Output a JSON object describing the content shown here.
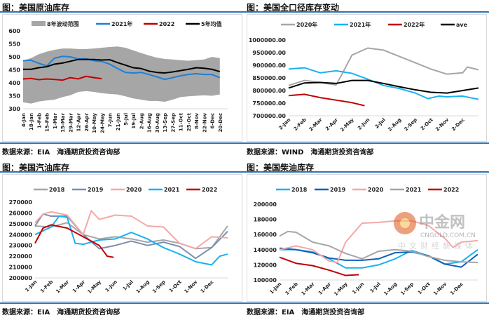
{
  "chart_data": [
    {
      "type": "line",
      "title": "图：美国原油库存",
      "source": "数据来源：EIA　海通期货投资咨询部",
      "ylim": [
        300,
        600
      ],
      "yticks": [
        300,
        350,
        400,
        450,
        500,
        550,
        600
      ],
      "ytick_labels": [
        "300",
        "350",
        "400",
        "450",
        "500",
        "550",
        "600"
      ],
      "xlabels": [
        "4-Jan",
        "18-Jan",
        "1-Feb",
        "15-Feb",
        "1-Mar",
        "15-Mar",
        "29-Mar",
        "12-Apr",
        "26-Apr",
        "10-May",
        "24-May",
        "7-Jun",
        "21-Jun",
        "5-Jul",
        "19-Jul",
        "2-Aug",
        "16-Aug",
        "30-Aug",
        "13-Sep",
        "27-Sep",
        "11-Oct",
        "25-Oct",
        "8-Nov",
        "22-Nov",
        "6-Dec",
        "20-Dec"
      ],
      "xrange": [
        0,
        26
      ],
      "xlabel_rotate": -90,
      "band": {
        "name": "8年波动范围",
        "color": "#a6a6a6",
        "x": [
          0,
          1,
          2,
          3,
          4,
          5,
          6,
          7,
          8,
          9,
          10,
          11,
          12,
          13,
          14,
          15,
          16,
          17,
          18,
          19,
          20,
          21,
          22,
          23,
          24,
          25
        ],
        "upper": [
          485,
          495,
          510,
          520,
          527,
          532,
          532,
          530,
          530,
          532,
          535,
          538,
          540,
          535,
          525,
          515,
          505,
          497,
          492,
          490,
          487,
          485,
          487,
          490,
          500,
          495
        ],
        "lower": [
          325,
          320,
          328,
          332,
          335,
          345,
          352,
          365,
          368,
          365,
          360,
          357,
          355,
          348,
          340,
          335,
          330,
          330,
          327,
          335,
          345,
          348,
          350,
          352,
          350,
          355
        ]
      },
      "series": [
        {
          "name": "2021年",
          "color": "#1f7fd6",
          "x": [
            0,
            1,
            2,
            3,
            4,
            5,
            6,
            7,
            8,
            9,
            10,
            11,
            12,
            13,
            14,
            15,
            16,
            17,
            18,
            19,
            20,
            21,
            22,
            23,
            24,
            25
          ],
          "values": [
            485,
            487,
            475,
            465,
            495,
            502,
            500,
            492,
            493,
            485,
            482,
            472,
            455,
            440,
            438,
            440,
            432,
            423,
            413,
            420,
            427,
            432,
            435,
            432,
            432,
            420
          ]
        },
        {
          "name": "2022",
          "color": "#c00000",
          "x": [
            0,
            1,
            2,
            3,
            4,
            5,
            6,
            7,
            8,
            9,
            10
          ],
          "values": [
            415,
            417,
            412,
            415,
            413,
            410,
            420,
            415,
            425,
            420,
            416
          ]
        },
        {
          "name": "5年均值",
          "color": "#000000",
          "x": [
            0,
            1,
            2,
            3,
            4,
            5,
            6,
            7,
            8,
            9,
            10,
            11,
            12,
            13,
            14,
            15,
            16,
            17,
            18,
            19,
            20,
            21,
            22,
            23,
            24,
            25
          ],
          "values": [
            452,
            452,
            458,
            462,
            472,
            476,
            483,
            490,
            490,
            490,
            488,
            489,
            478,
            468,
            458,
            455,
            445,
            440,
            438,
            442,
            447,
            452,
            458,
            456,
            452,
            443
          ]
        }
      ]
    },
    {
      "type": "line",
      "title": "图：美国全口径库存变动",
      "source": "数据来源：WIND　海通期货投资咨询部",
      "ylim": [
        700000,
        1000000
      ],
      "yticks": [
        700000,
        750000,
        800000,
        850000,
        900000,
        950000,
        1000000
      ],
      "ytick_labels": [
        "700000.00",
        "750000.00",
        "800000.00",
        "850000.00",
        "900000.00",
        "950000.00",
        "1000000.00"
      ],
      "xlabels": [
        "2-Jan",
        "2-Feb",
        "2-Mar",
        "2-Apr",
        "2-May",
        "2-Jun",
        "2-Jul",
        "2-Aug",
        "2-Sep",
        "2-Oct",
        "2-Nov",
        "2-Dec"
      ],
      "xrange": [
        0,
        12
      ],
      "xlabel_rotate": -45,
      "series": [
        {
          "name": "2020年",
          "color": "#a6a6a6",
          "x": [
            0,
            1,
            2,
            3,
            3.5,
            4,
            5,
            6,
            7,
            8,
            9,
            10,
            11,
            11.3,
            12
          ],
          "values": [
            820,
            840,
            832,
            822,
            880,
            940,
            968,
            960,
            935,
            910,
            885,
            865,
            870,
            893,
            882
          ]
        },
        {
          "name": "2021年",
          "color": "#1ab2f0",
          "x": [
            0,
            1,
            2,
            3,
            4,
            5,
            6,
            7,
            8,
            8.8,
            9.5,
            10,
            11,
            12
          ],
          "values": [
            885,
            890,
            870,
            878,
            868,
            845,
            820,
            808,
            790,
            768,
            778,
            775,
            778,
            765
          ]
        },
        {
          "name": "2022年",
          "color": "#c00000",
          "x": [
            0,
            1,
            2,
            3,
            4,
            4.8
          ],
          "values": [
            780,
            785,
            772,
            762,
            752,
            740
          ]
        },
        {
          "name": "ave",
          "color": "#000000",
          "x": [
            0,
            1,
            2,
            3,
            4,
            5,
            6,
            7,
            8,
            9,
            10,
            11,
            12
          ],
          "values": [
            810,
            830,
            832,
            828,
            840,
            840,
            828,
            815,
            803,
            793,
            790,
            800,
            810
          ]
        }
      ]
    },
    {
      "type": "line",
      "title": "图：美国汽油库存",
      "source": "数据来源：EIA　海通期货投资咨询部",
      "ylim": [
        200000,
        270000
      ],
      "yticks": [
        200000,
        210000,
        220000,
        230000,
        240000,
        250000,
        260000,
        270000
      ],
      "ytick_labels": [
        "200000",
        "210000",
        "220000",
        "230000",
        "240000",
        "250000",
        "260000",
        "270000"
      ],
      "xlabels": [
        "1-Jan",
        "1-Feb",
        "1-Mar",
        "1-Apr",
        "1-May",
        "1-Jun",
        "1-Jul",
        "1-Aug",
        "1-Sep",
        "1-Oct",
        "1-Nov",
        "1-Dec"
      ],
      "xrange": [
        0,
        12
      ],
      "xlabel_rotate": -45,
      "series": [
        {
          "name": "2018",
          "color": "#a6a6a6",
          "x": [
            0,
            1,
            2,
            3,
            4,
            5,
            6,
            7,
            8,
            9,
            10,
            11,
            12
          ],
          "values": [
            248,
            247,
            251,
            240,
            236,
            238,
            236,
            233,
            235,
            232,
            227,
            228,
            248
          ]
        },
        {
          "name": "2019",
          "color": "#7b8fb0",
          "x": [
            0,
            0.5,
            1,
            2,
            3,
            4,
            5,
            6,
            7,
            8,
            9,
            10,
            11,
            12
          ],
          "values": [
            248,
            259,
            257,
            257,
            240,
            227,
            230,
            234,
            230,
            233,
            229,
            218,
            228,
            243
          ]
        },
        {
          "name": "2020",
          "color": "#f4a8a8",
          "x": [
            0,
            0.5,
            1,
            2,
            3,
            3.5,
            4,
            5,
            6,
            7,
            8,
            9,
            10,
            11,
            12
          ],
          "values": [
            251,
            259,
            261,
            258,
            240,
            262,
            254,
            258,
            257,
            248,
            247,
            232,
            227,
            238,
            237
          ]
        },
        {
          "name": "2021",
          "color": "#1ab2f0",
          "x": [
            0,
            1,
            1.5,
            2,
            2.5,
            3,
            4,
            5,
            6,
            7,
            8,
            9,
            10,
            11,
            11.5,
            12
          ],
          "values": [
            240,
            247,
            257,
            256,
            232,
            231,
            235,
            236,
            242,
            236,
            228,
            222,
            215,
            212,
            220,
            222
          ]
        },
        {
          "name": "2022",
          "color": "#c00000",
          "x": [
            0,
            0.5,
            1,
            2,
            3,
            4,
            4.5,
            4.9
          ],
          "values": [
            232,
            246,
            249,
            246,
            238,
            230,
            220,
            219
          ]
        }
      ]
    },
    {
      "type": "line",
      "title": "图：美国柴油库存",
      "source": "数据来源：EIA　海通期货投资咨询部",
      "ylim": [
        100000,
        200000
      ],
      "yticks": [
        100000,
        120000,
        140000,
        160000,
        180000,
        200000
      ],
      "ytick_labels": [
        "100000",
        "120000",
        "140000",
        "160000",
        "180000",
        "200000"
      ],
      "xlabels": [
        "1-Jan",
        "1-Feb",
        "1-Mar",
        "1-Apr",
        "1-May",
        "1-Jun",
        "1-Jul",
        "1-Aug",
        "1-Sep",
        "1-Oct",
        "1-Nov",
        "1-Dec"
      ],
      "xrange": [
        0,
        12
      ],
      "xlabel_rotate": -45,
      "series": [
        {
          "name": "2018",
          "color": "#1ab2f0",
          "x": [
            0,
            1,
            2,
            3,
            4,
            5,
            6,
            7,
            8,
            9,
            10,
            11,
            12
          ],
          "values": [
            140,
            140,
            137,
            128,
            116,
            116,
            120,
            128,
            139,
            132,
            121,
            124,
            140
          ]
        },
        {
          "name": "2019",
          "color": "#1060b8",
          "x": [
            0,
            1,
            2,
            3,
            4,
            5,
            6,
            7,
            8,
            9,
            10,
            11,
            12
          ],
          "values": [
            142,
            140,
            136,
            129,
            126,
            126,
            128,
            136,
            137,
            132,
            121,
            117,
            134
          ]
        },
        {
          "name": "2020",
          "color": "#f4a8a8",
          "x": [
            0,
            1,
            2,
            3,
            3.5,
            4,
            5,
            6,
            7,
            8,
            9,
            10,
            10.5,
            11,
            12
          ],
          "values": [
            140,
            145,
            140,
            125,
            123,
            150,
            175,
            176,
            178,
            178,
            172,
            155,
            143,
            150,
            152
          ]
        },
        {
          "name": "2021",
          "color": "#a6a6a6",
          "x": [
            0,
            0.5,
            1,
            2,
            3,
            4,
            5,
            6,
            7,
            8,
            9,
            10,
            11,
            12
          ],
          "values": [
            158,
            164,
            163,
            150,
            145,
            135,
            128,
            138,
            140,
            138,
            131,
            126,
            124,
            123
          ]
        },
        {
          "name": "2022",
          "color": "#c00000",
          "x": [
            0,
            1,
            2,
            3,
            4,
            4.8
          ],
          "values": [
            130,
            122,
            119,
            113,
            106,
            107
          ]
        }
      ]
    }
  ],
  "watermark": {
    "logo": "中金网",
    "site": "CNGOLD.COM.CN",
    "slogan": "中文财经新媒体"
  }
}
